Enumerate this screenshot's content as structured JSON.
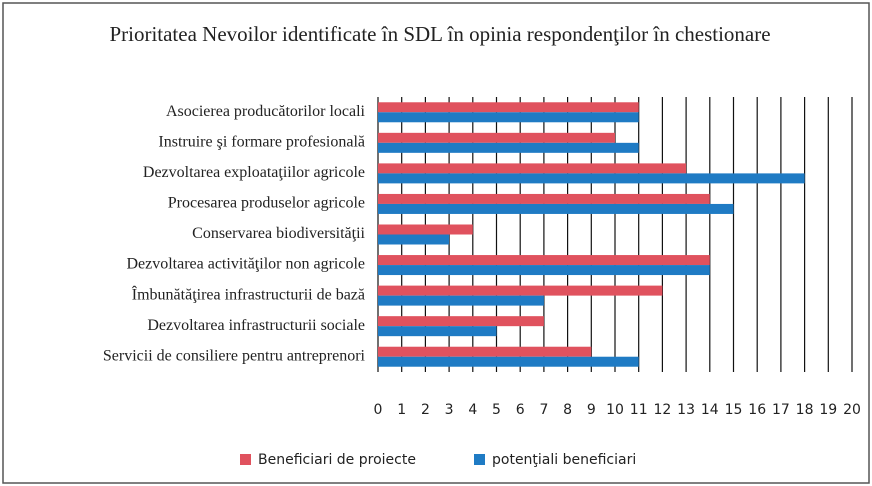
{
  "chart_data": {
    "type": "hbar",
    "title": "Prioritatea Nevoilor identificate în SDL în opinia respondenţilor  în chestionare",
    "categories": [
      "Asocierea producătorilor locali",
      "Instruire şi formare profesională",
      "Dezvoltarea exploataţiilor agricole",
      "Procesarea produselor agricole",
      "Conservarea biodiversităţii",
      "Dezvoltarea activităţilor non agricole",
      "Îmbunătăţirea infrastructurii de bază",
      "Dezvoltarea infrastructurii sociale",
      "Servicii de consiliere pentru antreprenori"
    ],
    "series": [
      {
        "name": "Beneficiari de proiecte",
        "color": "#e0525e",
        "values": [
          11,
          10,
          13,
          14,
          4,
          14,
          12,
          7,
          9
        ]
      },
      {
        "name": "potenţiali beneficiari",
        "color": "#1f7bc4",
        "values": [
          11,
          11,
          18,
          15,
          3,
          14,
          7,
          5,
          11
        ]
      }
    ],
    "xlim": [
      0,
      20
    ],
    "xticks": [
      0,
      1,
      2,
      3,
      4,
      5,
      6,
      7,
      8,
      9,
      10,
      11,
      12,
      13,
      14,
      15,
      16,
      17,
      18,
      19,
      20
    ],
    "grid": true,
    "legend": "bottom"
  }
}
